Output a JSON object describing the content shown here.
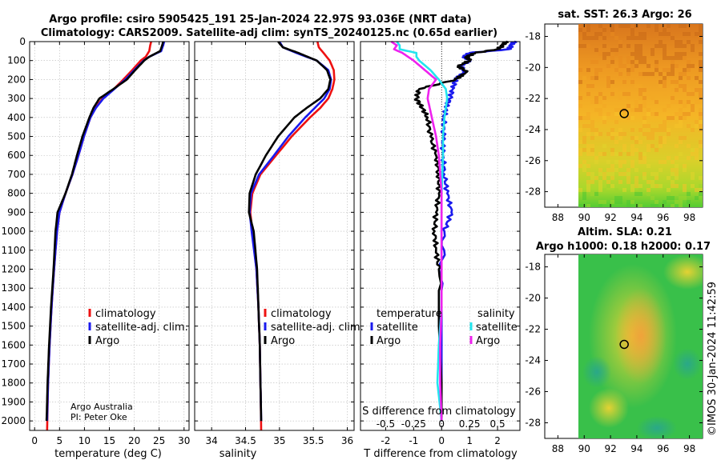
{
  "title": {
    "line1": "Argo profile: csiro 5905425_191 25-Jan-2024 22.97S 93.036E (NRT data)",
    "line2": "Climatology: CARS2009. Satellite-adj clim: synTS_20240125.nc (0.65d earlier)"
  },
  "colors": {
    "climatology": "#ee1111",
    "satellite": "#1a1aee",
    "argo": "#000000",
    "cyan": "#22e5ee",
    "magenta": "#ee22ee"
  },
  "chart_data": [
    {
      "type": "line",
      "id": "temperature",
      "xlabel": "temperature (deg C)",
      "ylabel": "",
      "xlim": [
        -1,
        31
      ],
      "ylim": [
        2050,
        0
      ],
      "xticks": [
        0,
        5,
        10,
        15,
        20,
        25,
        30
      ],
      "yticks": [
        0,
        100,
        200,
        300,
        400,
        500,
        600,
        700,
        800,
        900,
        1000,
        1100,
        1200,
        1300,
        1400,
        1500,
        1600,
        1700,
        1800,
        1900,
        2000
      ],
      "grid": true,
      "legend": [
        "climatology",
        "satellite-adj. clim.",
        "Argo"
      ],
      "annotation": [
        "Argo Australia",
        "PI: Peter Oke"
      ],
      "series": [
        {
          "name": "climatology",
          "color": "#ee1111",
          "depth": [
            0,
            20,
            50,
            80,
            100,
            150,
            200,
            250,
            300,
            350,
            400,
            500,
            600,
            700,
            800,
            900,
            1000,
            1200,
            1400,
            1600,
            1800,
            2050
          ],
          "values": [
            23.4,
            23.2,
            23.0,
            22.3,
            21.3,
            19.6,
            17.8,
            15.9,
            13.6,
            12.2,
            11.2,
            9.9,
            8.8,
            7.6,
            6.2,
            5.0,
            4.5,
            3.9,
            3.4,
            3.0,
            2.7,
            2.5
          ]
        },
        {
          "name": "satellite-adj. clim.",
          "color": "#1a1aee",
          "depth": [
            0,
            20,
            50,
            80,
            100,
            150,
            200,
            250,
            300,
            350,
            400,
            500,
            600,
            700,
            800,
            900,
            1000,
            1200,
            1400,
            1600,
            1800,
            2000
          ],
          "values": [
            26.0,
            25.8,
            25.4,
            23.0,
            21.9,
            20.0,
            18.2,
            16.0,
            13.8,
            12.3,
            11.2,
            9.9,
            8.8,
            7.6,
            6.2,
            5.0,
            4.5,
            3.9,
            3.4,
            3.0,
            2.7,
            2.5
          ]
        },
        {
          "name": "Argo",
          "color": "#000000",
          "depth": [
            0,
            20,
            50,
            80,
            100,
            150,
            200,
            250,
            300,
            350,
            400,
            500,
            600,
            700,
            800,
            900,
            1000,
            1200,
            1400,
            1600,
            1800,
            2000
          ],
          "values": [
            25.8,
            25.6,
            25.2,
            23.0,
            22.0,
            20.2,
            18.5,
            15.8,
            13.0,
            11.8,
            11.0,
            9.6,
            8.5,
            7.5,
            6.2,
            4.6,
            4.2,
            3.8,
            3.3,
            2.9,
            2.6,
            2.4
          ]
        }
      ]
    },
    {
      "type": "line",
      "id": "salinity",
      "xlabel": "salinity",
      "xlim": [
        33.75,
        36.1
      ],
      "ylim": [
        2050,
        0
      ],
      "xticks": [
        34,
        34.5,
        35,
        35.5,
        36
      ],
      "grid": true,
      "legend": [
        "climatology",
        "satellite-adj. clim.",
        "Argo"
      ],
      "series": [
        {
          "name": "climatology",
          "color": "#ee1111",
          "depth": [
            0,
            30,
            60,
            100,
            150,
            200,
            250,
            300,
            350,
            400,
            500,
            600,
            700,
            800,
            900,
            1000,
            1200,
            1400,
            1600,
            1800,
            2050
          ],
          "values": [
            35.56,
            35.58,
            35.65,
            35.74,
            35.8,
            35.81,
            35.78,
            35.72,
            35.6,
            35.45,
            35.18,
            34.95,
            34.72,
            34.6,
            34.57,
            34.6,
            34.66,
            34.69,
            34.71,
            34.72,
            34.73
          ]
        },
        {
          "name": "satellite-adj. clim.",
          "color": "#1a1aee",
          "depth": [
            0,
            30,
            60,
            100,
            150,
            200,
            250,
            300,
            350,
            400,
            500,
            600,
            700,
            800,
            900,
            1000,
            1200,
            1400,
            1600,
            1800,
            2000
          ],
          "values": [
            35.0,
            35.05,
            35.25,
            35.55,
            35.72,
            35.76,
            35.74,
            35.66,
            35.52,
            35.38,
            35.13,
            34.92,
            34.7,
            34.58,
            34.56,
            34.59,
            34.66,
            34.69,
            34.71,
            34.72,
            34.73
          ]
        },
        {
          "name": "Argo",
          "color": "#000000",
          "depth": [
            0,
            30,
            60,
            100,
            150,
            200,
            250,
            300,
            350,
            400,
            500,
            600,
            700,
            800,
            900,
            1000,
            1200,
            1400,
            1600,
            1800,
            2000
          ],
          "values": [
            34.98,
            35.05,
            35.28,
            35.55,
            35.7,
            35.75,
            35.72,
            35.6,
            35.4,
            35.22,
            34.98,
            34.8,
            34.65,
            34.56,
            34.55,
            34.62,
            34.67,
            34.69,
            34.71,
            34.72,
            34.73
          ]
        }
      ]
    },
    {
      "type": "line",
      "id": "difference",
      "xlabel": "T difference from climatology",
      "xlabel_top": "S difference from climatology",
      "xlim": [
        -2.9,
        2.8
      ],
      "xticks": [
        -2,
        -1,
        0,
        1,
        2
      ],
      "s_ticks": [
        -0.5,
        -0.25,
        0,
        0.25,
        0.5
      ],
      "s_tick_labels": [
        "-0.5",
        "-0.25",
        "0",
        "0.25",
        "0.5"
      ],
      "grid": true,
      "legend_left_title": "temperature",
      "legend_right_title": "salinity",
      "legend_left": [
        "satellite",
        "Argo"
      ],
      "legend_right": [
        "satellite",
        "Argo"
      ],
      "series": [
        {
          "name": "T satellite",
          "color": "#1a1aee",
          "depth": [
            0,
            20,
            40,
            60,
            80,
            100,
            130,
            160,
            200,
            250,
            300,
            350,
            400,
            500,
            600,
            700,
            800,
            900,
            1000,
            1200,
            1500,
            1800,
            2000
          ],
          "values": [
            2.6,
            2.5,
            2.4,
            1.0,
            0.8,
            1.0,
            0.7,
            0.8,
            0.5,
            0.4,
            0.3,
            0.15,
            0.1,
            0.05,
            0.05,
            0.1,
            0.2,
            0.35,
            0.1,
            0.0,
            0.0,
            0.0,
            0.0
          ]
        },
        {
          "name": "T Argo",
          "color": "#000000",
          "depth": [
            0,
            20,
            40,
            60,
            80,
            100,
            130,
            160,
            200,
            250,
            300,
            350,
            400,
            500,
            600,
            700,
            800,
            900,
            1000,
            1100,
            1200,
            1500,
            1800,
            2000
          ],
          "values": [
            2.3,
            2.2,
            2.0,
            1.2,
            0.9,
            1.0,
            0.6,
            0.9,
            0.5,
            -0.8,
            -0.9,
            -0.7,
            -0.5,
            -0.4,
            -0.2,
            -0.1,
            -0.1,
            -0.2,
            -0.25,
            -0.2,
            -0.1,
            -0.1,
            0.0,
            0.0
          ]
        },
        {
          "name": "S satellite",
          "color": "#22e5ee",
          "depth": [
            0,
            20,
            40,
            60,
            80,
            100,
            150,
            200,
            250,
            300,
            400,
            500,
            600,
            800,
            1000,
            1200,
            1400,
            1600,
            1800,
            2000
          ],
          "values": [
            -1.6,
            -1.5,
            -1.5,
            -0.9,
            -0.9,
            -0.8,
            -0.4,
            -0.1,
            0.15,
            0.2,
            0.1,
            0.05,
            0.05,
            0.0,
            0.0,
            0.0,
            0.0,
            -0.1,
            -0.15,
            0.0
          ]
        },
        {
          "name": "S Argo",
          "color": "#ee22ee",
          "depth": [
            0,
            20,
            40,
            60,
            80,
            100,
            150,
            200,
            250,
            300,
            400,
            500,
            600,
            800,
            1000,
            1200,
            1400,
            1600,
            1800,
            2000
          ],
          "values": [
            -1.8,
            -1.6,
            -1.7,
            -1.4,
            -1.2,
            -1.0,
            -0.6,
            -0.2,
            -0.45,
            -0.5,
            -0.35,
            -0.2,
            -0.1,
            0.0,
            0.0,
            0.0,
            0.0,
            -0.05,
            -0.05,
            0.0
          ]
        }
      ]
    },
    {
      "type": "heatmap",
      "id": "sst_map",
      "title": "sat. SST: 26.3 Argo: 26",
      "xlim": [
        87,
        99
      ],
      "ylim": [
        -29,
        -17.2
      ],
      "xticks": [
        88,
        90,
        92,
        94,
        96,
        98
      ],
      "yticks": [
        -18,
        -20,
        -22,
        -24,
        -26,
        -28
      ],
      "marker": {
        "lon": 93.04,
        "lat": -22.97
      }
    },
    {
      "type": "heatmap",
      "id": "sla_map",
      "title_line1": "Altim. SLA: 0.21",
      "title_line2": "Argo h1000: 0.18 h2000: 0.17",
      "xlim": [
        87,
        99
      ],
      "ylim": [
        -29,
        -17.2
      ],
      "xticks": [
        88,
        90,
        92,
        94,
        96,
        98
      ],
      "yticks": [
        -18,
        -20,
        -22,
        -24,
        -26,
        -28
      ],
      "marker": {
        "lon": 93.04,
        "lat": -22.97
      }
    }
  ],
  "timestamp": "©IMOS 30-Jan-2024 11:42:59"
}
